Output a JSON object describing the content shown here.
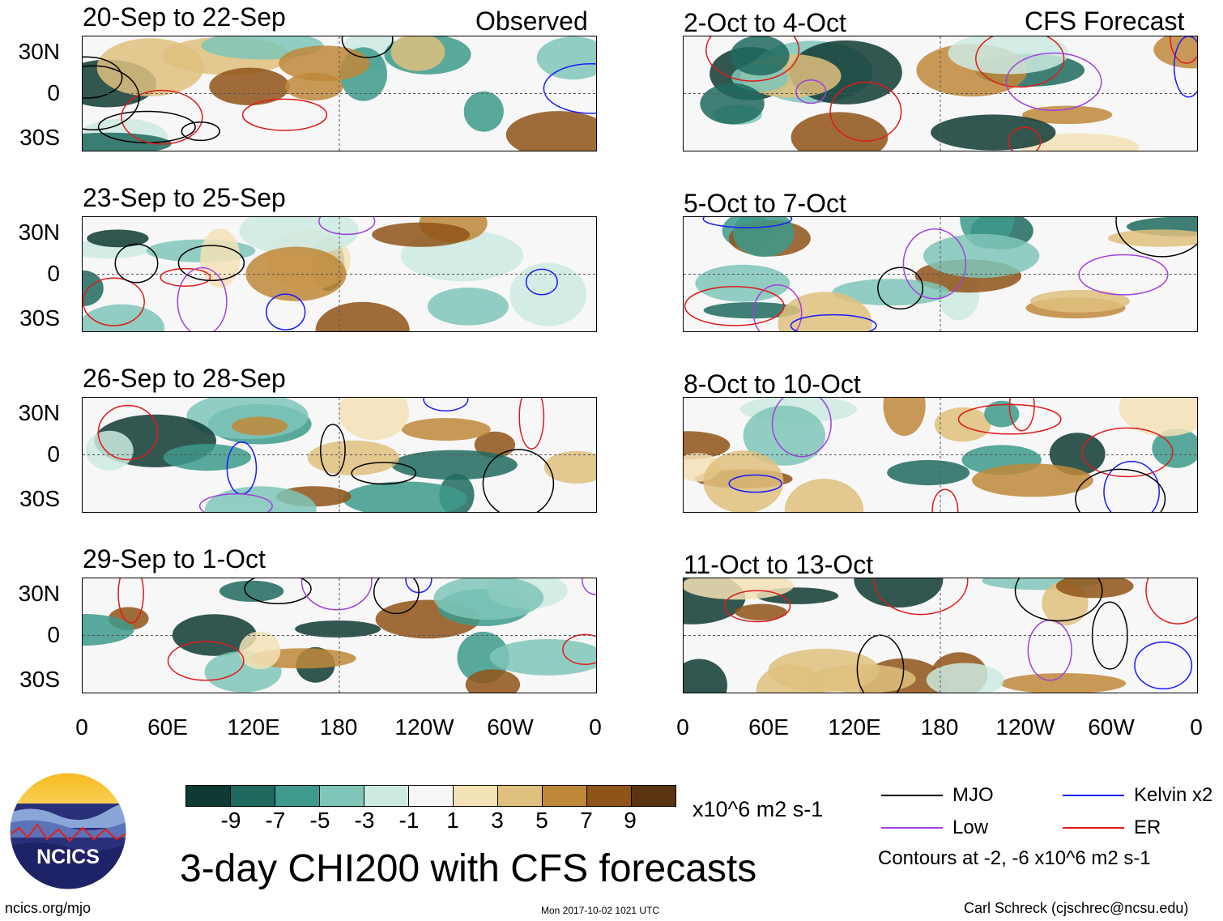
{
  "observed_header": "Observed",
  "forecast_header": "CFS Forecast",
  "observed_panels": [
    {
      "title": "20-Sep to 22-Sep"
    },
    {
      "title": "23-Sep to 25-Sep"
    },
    {
      "title": "26-Sep to 28-Sep"
    },
    {
      "title": "29-Sep to 1-Oct"
    }
  ],
  "forecast_panels": [
    {
      "title": "2-Oct to 4-Oct"
    },
    {
      "title": "5-Oct to 7-Oct"
    },
    {
      "title": "8-Oct to 10-Oct"
    },
    {
      "title": "11-Oct to 13-Oct"
    }
  ],
  "lat_labels": [
    "30N",
    "0",
    "30S"
  ],
  "lon_labels": [
    "0",
    "60E",
    "120E",
    "180",
    "120W",
    "60W",
    "0"
  ],
  "colorbar": {
    "colors": [
      "#0f3a33",
      "#1f6a5f",
      "#3d9a8c",
      "#7fc6b8",
      "#cdeae2",
      "#f7f7f7",
      "#f3e2b6",
      "#dfc07e",
      "#bf8839",
      "#8f5418",
      "#5a3410"
    ],
    "labels": [
      "-9",
      "-7",
      "-5",
      "-3",
      "-1",
      "1",
      "3",
      "5",
      "7",
      "9"
    ],
    "units": "x10^6 m2 s-1"
  },
  "legend": {
    "items": [
      {
        "label": "MJO",
        "color": "#000000"
      },
      {
        "label": "Kelvin x2",
        "color": "#1a1aff"
      },
      {
        "label": "Low",
        "color": "#a040e0"
      },
      {
        "label": "ER",
        "color": "#e01a1a"
      }
    ],
    "contours_note": "Contours at -2, -6 x10^6 m2 s-1"
  },
  "main_title": "3-day CHI200 with CFS forecasts",
  "logo_text": "NCICS",
  "footer": {
    "url": "ncics.org/mjo",
    "timestamp": "Mon 2017-10-02 1021 UTC",
    "author": "Carl Schreck (cjschrec@ncsu.edu)"
  }
}
